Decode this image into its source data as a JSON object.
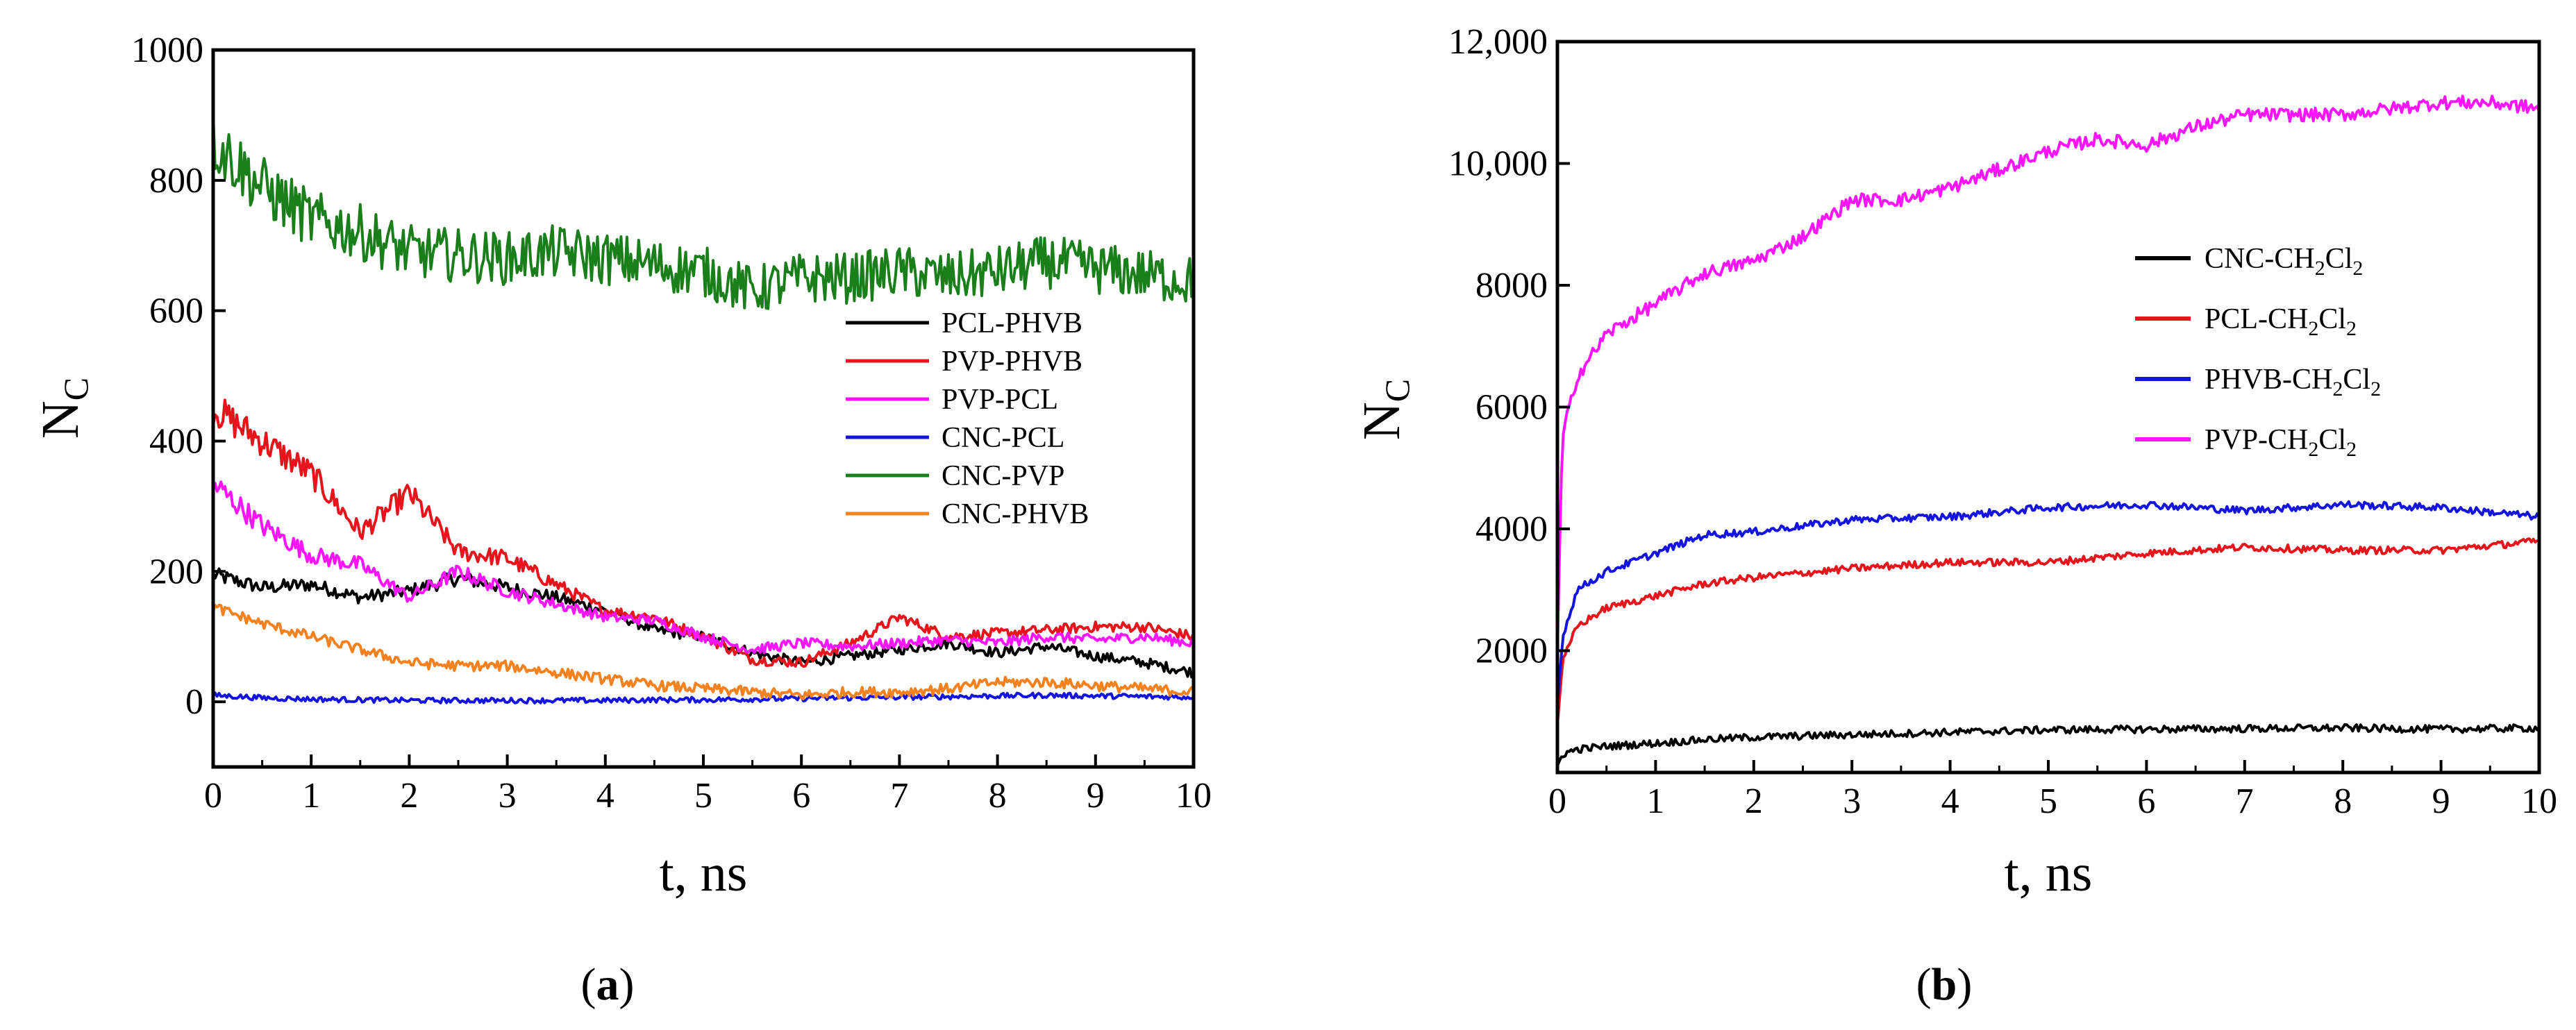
{
  "chart_data": [
    {
      "panel": "(a)",
      "panel_label_open": "(",
      "panel_label_letter": "a",
      "panel_label_close": ")",
      "type": "line",
      "xlabel": "t, ns",
      "ylabel_main": "N",
      "ylabel_sub": "C",
      "xlim": [
        0,
        10
      ],
      "ylim": [
        -100,
        1000
      ],
      "xticks": [
        0,
        1,
        2,
        3,
        4,
        5,
        6,
        7,
        8,
        9,
        10
      ],
      "yticks": [
        0,
        200,
        400,
        600,
        800,
        1000
      ],
      "legend_position": "center-right",
      "series": [
        {
          "name": "PCL-PHVB",
          "color": "#000000",
          "x": [
            0,
            0.5,
            1,
            1.5,
            2,
            2.5,
            3,
            3.5,
            4,
            4.5,
            5,
            5.5,
            6,
            6.5,
            7,
            7.5,
            8,
            8.5,
            9,
            9.5,
            10
          ],
          "values": [
            195,
            175,
            180,
            160,
            170,
            190,
            175,
            160,
            140,
            110,
            100,
            75,
            60,
            70,
            80,
            90,
            75,
            85,
            70,
            60,
            45
          ]
        },
        {
          "name": "PVP-PHVB",
          "color": "#e8141b",
          "x": [
            0,
            0.5,
            1,
            1.5,
            2,
            2.5,
            3,
            3.5,
            4,
            4.5,
            5,
            5.5,
            6,
            6.5,
            7,
            7.5,
            8,
            8.5,
            9,
            9.5,
            10
          ],
          "values": [
            450,
            400,
            350,
            260,
            320,
            230,
            220,
            180,
            140,
            130,
            100,
            65,
            60,
            90,
            130,
            100,
            105,
            110,
            115,
            115,
            100
          ]
        },
        {
          "name": "PVP-PCL",
          "color": "#ff14ff",
          "x": [
            0,
            0.5,
            1,
            1.5,
            2,
            2.5,
            3,
            3.5,
            4,
            4.5,
            5,
            5.5,
            6,
            6.5,
            7,
            7.5,
            8,
            8.5,
            9,
            9.5,
            10
          ],
          "values": [
            335,
            270,
            225,
            210,
            160,
            200,
            170,
            150,
            130,
            125,
            100,
            80,
            90,
            85,
            90,
            95,
            90,
            100,
            95,
            100,
            90
          ]
        },
        {
          "name": "CNC-PCL",
          "color": "#1414e0",
          "x": [
            0,
            0.5,
            1,
            1.5,
            2,
            2.5,
            3,
            3.5,
            4,
            4.5,
            5,
            5.5,
            6,
            6.5,
            7,
            7.5,
            8,
            8.5,
            9,
            9.5,
            10
          ],
          "values": [
            10,
            6,
            4,
            3,
            2,
            2,
            2,
            2,
            2,
            3,
            3,
            4,
            5,
            6,
            7,
            8,
            9,
            10,
            9,
            8,
            7
          ]
        },
        {
          "name": "CNC-PVP",
          "color": "#1a7f1a",
          "x": [
            0,
            0.5,
            1,
            1.5,
            2,
            2.5,
            3,
            3.5,
            4,
            4.5,
            5,
            5.5,
            6,
            6.5,
            7,
            7.5,
            8,
            8.5,
            9,
            9.5,
            10
          ],
          "values": [
            860,
            790,
            740,
            720,
            690,
            685,
            680,
            690,
            680,
            670,
            660,
            630,
            650,
            650,
            660,
            650,
            660,
            675,
            665,
            655,
            645
          ]
        },
        {
          "name": "CNC-PHVB",
          "color": "#f5821f",
          "x": [
            0,
            0.5,
            1,
            1.5,
            2,
            2.5,
            3,
            3.5,
            4,
            4.5,
            5,
            5.5,
            6,
            6.5,
            7,
            7.5,
            8,
            8.5,
            9,
            9.5,
            10
          ],
          "values": [
            145,
            120,
            100,
            80,
            60,
            55,
            55,
            45,
            35,
            25,
            20,
            15,
            10,
            15,
            15,
            20,
            30,
            30,
            25,
            20,
            15
          ]
        }
      ]
    },
    {
      "panel": "(b)",
      "panel_label_open": "(",
      "panel_label_letter": "b",
      "panel_label_close": ")",
      "type": "line",
      "xlabel": "t, ns",
      "ylabel_main": "N",
      "ylabel_sub": "C",
      "xlim": [
        0,
        10
      ],
      "ylim": [
        0,
        12000
      ],
      "xticks": [
        0,
        1,
        2,
        3,
        4,
        5,
        6,
        7,
        8,
        9,
        10
      ],
      "ytick_values": [
        2000,
        4000,
        6000,
        8000,
        10000,
        12000
      ],
      "ytick_labels": [
        "2000",
        "4000",
        "6000",
        "8000",
        "10,000",
        "12,000"
      ],
      "legend_position": "center-right",
      "series": [
        {
          "name": "CNC-CH2Cl2",
          "label_parts": [
            "CNC-CH",
            "2",
            "Cl",
            "2"
          ],
          "color": "#000000",
          "x": [
            0,
            0.05,
            0.2,
            0.5,
            1,
            1.5,
            2,
            3,
            4,
            5,
            6,
            7,
            8,
            9,
            10
          ],
          "values": [
            100,
            300,
            380,
            430,
            480,
            540,
            580,
            620,
            660,
            700,
            710,
            720,
            730,
            710,
            730
          ]
        },
        {
          "name": "PCL-CH2Cl2",
          "label_parts": [
            "PCL-CH",
            "2",
            "Cl",
            "2"
          ],
          "color": "#e8141b",
          "x": [
            0,
            0.05,
            0.2,
            0.5,
            1,
            1.5,
            2,
            3,
            4,
            5,
            6,
            7,
            8,
            9,
            10
          ],
          "values": [
            800,
            1800,
            2400,
            2700,
            2900,
            3100,
            3200,
            3350,
            3450,
            3450,
            3600,
            3700,
            3650,
            3650,
            3800
          ]
        },
        {
          "name": "PHVB-CH2Cl2",
          "label_parts": [
            "PHVB-CH",
            "2",
            "Cl",
            "2"
          ],
          "color": "#1414e0",
          "x": [
            0,
            0.05,
            0.2,
            0.5,
            1,
            1.5,
            2,
            3,
            4,
            5,
            6,
            7,
            8,
            9,
            10
          ],
          "values": [
            1100,
            2200,
            3000,
            3300,
            3600,
            3900,
            3950,
            4150,
            4200,
            4350,
            4400,
            4300,
            4400,
            4350,
            4200
          ]
        },
        {
          "name": "PVP-CH2Cl2",
          "label_parts": [
            "PVP-CH",
            "2",
            "Cl",
            "2"
          ],
          "color": "#ff14ff",
          "x": [
            0,
            0.05,
            0.2,
            0.5,
            1,
            1.5,
            2,
            2.5,
            3,
            3.5,
            4,
            4.5,
            5,
            5.5,
            6,
            6.5,
            7,
            7.5,
            8,
            8.5,
            9,
            9.5,
            10
          ],
          "values": [
            2000,
            5500,
            6500,
            7200,
            7700,
            8200,
            8400,
            8800,
            9400,
            9400,
            9600,
            9900,
            10200,
            10400,
            10300,
            10600,
            10800,
            10800,
            10800,
            10900,
            11000,
            11000,
            10900
          ]
        }
      ]
    }
  ]
}
